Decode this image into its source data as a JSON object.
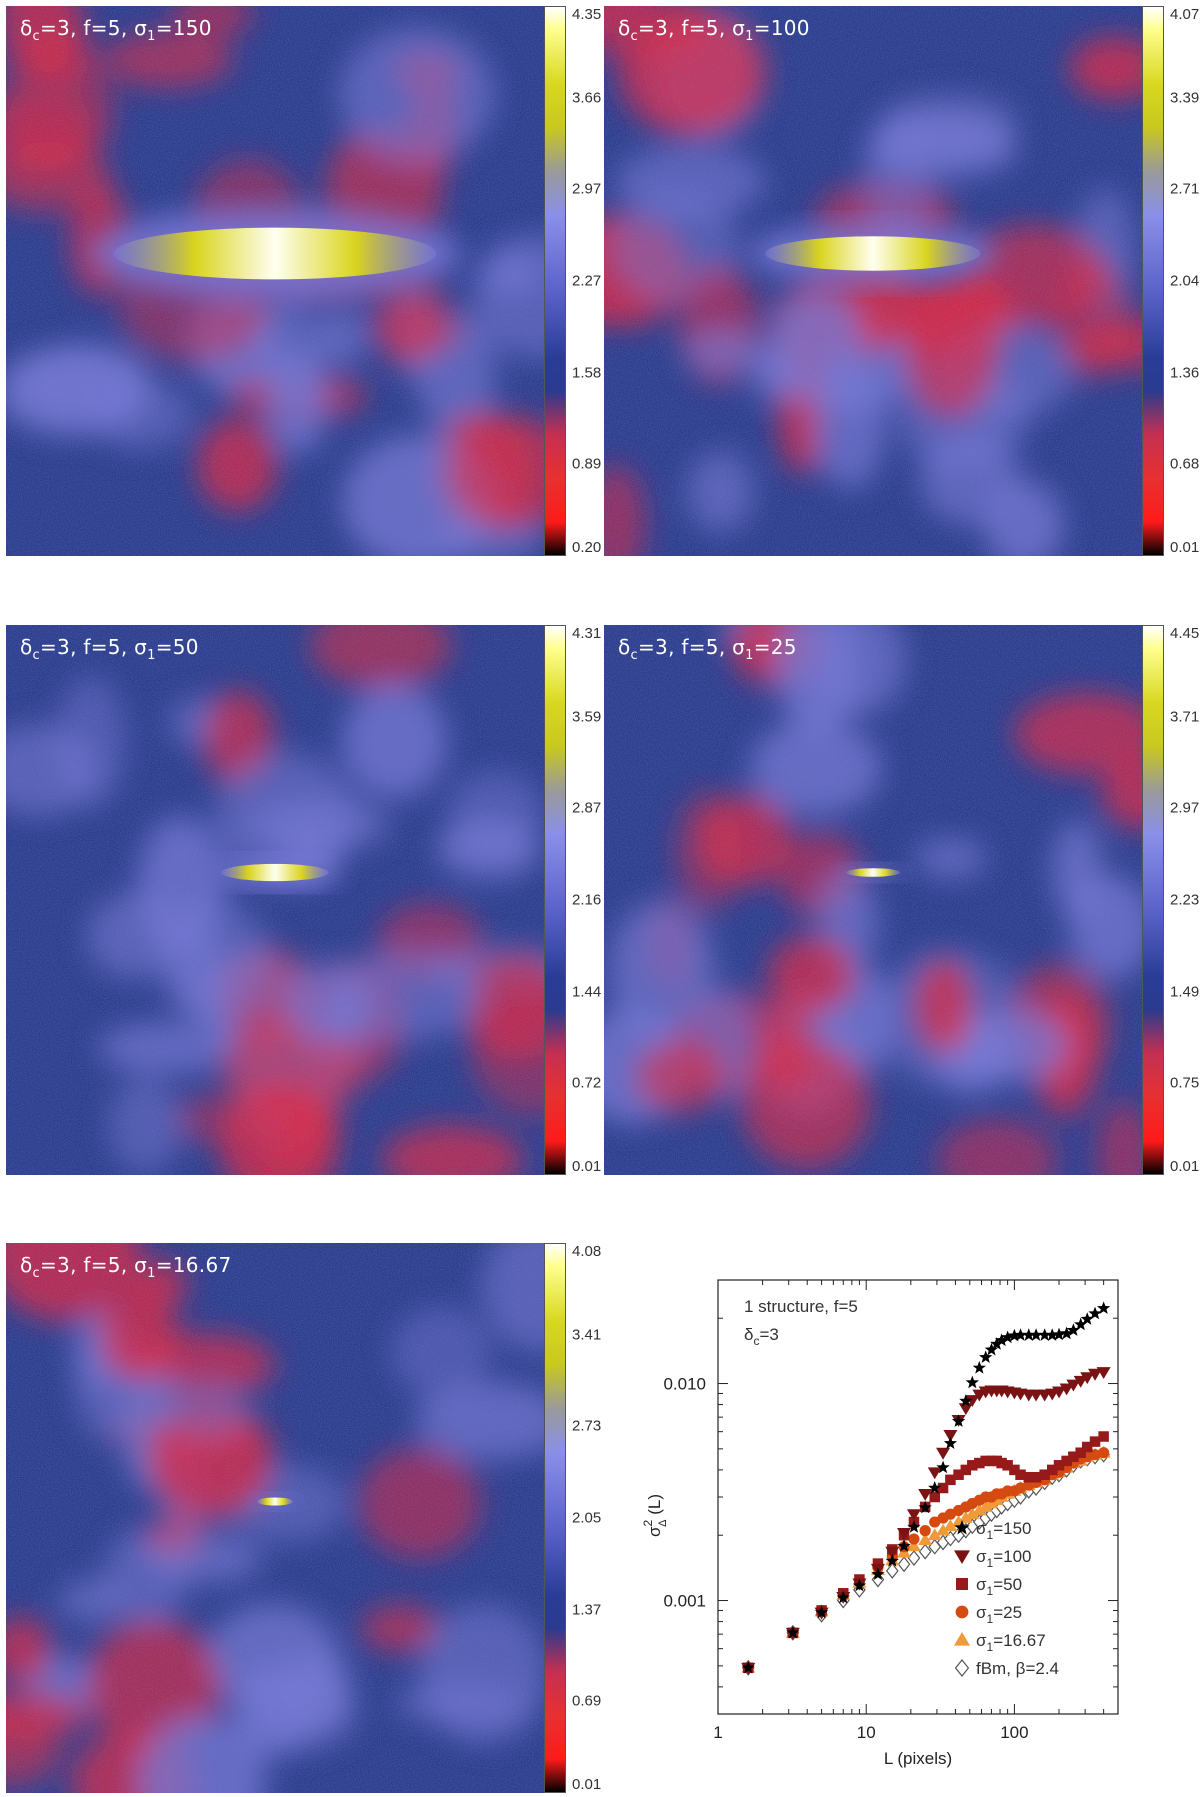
{
  "maps": [
    {
      "label_prefix": "δ",
      "label_sub": "c",
      "label_mid": "=3,  f=5,  σ",
      "label_sub2": "1",
      "label_val": "=150",
      "colorbar_ticks": [
        "4.35",
        "3.66",
        "2.97",
        "2.27",
        "1.58",
        "0.89",
        "0.20"
      ],
      "ellipse_width_fraction": 0.6
    },
    {
      "label_prefix": "δ",
      "label_sub": "c",
      "label_mid": "=3,  f=5,  σ",
      "label_sub2": "1",
      "label_val": "=100",
      "colorbar_ticks": [
        "4.07",
        "3.39",
        "2.71",
        "2.04",
        "1.36",
        "0.68",
        "0.01"
      ],
      "ellipse_width_fraction": 0.4
    },
    {
      "label_prefix": "δ",
      "label_sub": "c",
      "label_mid": "=3,  f=5,  σ",
      "label_sub2": "1",
      "label_val": "=50",
      "colorbar_ticks": [
        "4.31",
        "3.59",
        "2.87",
        "2.16",
        "1.44",
        "0.72",
        "0.01"
      ],
      "ellipse_width_fraction": 0.2
    },
    {
      "label_prefix": "δ",
      "label_sub": "c",
      "label_mid": "=3,  f=5,  σ",
      "label_sub2": "1",
      "label_val": "=25",
      "colorbar_ticks": [
        "4.45",
        "3.71",
        "2.97",
        "2.23",
        "1.49",
        "0.75",
        "0.01"
      ],
      "ellipse_width_fraction": 0.1
    },
    {
      "label_prefix": "δ",
      "label_sub": "c",
      "label_mid": "=3,  f=5,  σ",
      "label_sub2": "1",
      "label_val": "=16.67",
      "colorbar_ticks": [
        "4.08",
        "3.41",
        "2.73",
        "2.05",
        "1.37",
        "0.69",
        "0.01"
      ],
      "ellipse_width_fraction": 0.067
    }
  ],
  "colors": {
    "map_bg": "#2b3c8c",
    "map_light": "#7878d6",
    "map_red": "#e8233a",
    "core_yellow": "#d9d41e",
    "core_white": "#fffff0"
  },
  "chart_data": {
    "type": "scatter",
    "xscale": "log",
    "yscale": "log",
    "xlim": [
      1,
      500
    ],
    "ylim": [
      0.0003,
      0.03
    ],
    "xlabel": "L (pixels)",
    "ylabel_main": "σ",
    "ylabel_sup": "2",
    "ylabel_sub": "Δ",
    "ylabel_tail": " (L)",
    "xticks": [
      {
        "v": 1,
        "label": "1"
      },
      {
        "v": 10,
        "label": "10"
      },
      {
        "v": 100,
        "label": "100"
      }
    ],
    "yticks": [
      {
        "v": 0.001,
        "label": "0.001"
      },
      {
        "v": 0.01,
        "label": "0.010"
      }
    ],
    "annotation_line1": "1 structure, f=5",
    "annotation_line2_main": "δ",
    "annotation_line2_sub": "c",
    "annotation_line2_tail": "=3",
    "legend_position": "bottom-right",
    "series": [
      {
        "name_main": "σ",
        "name_sub": "1",
        "name_tail": "=150",
        "marker": "star",
        "color": "#000000",
        "x": [
          1.6,
          3.2,
          5,
          7,
          9,
          12,
          15,
          18,
          21,
          25,
          29,
          33,
          37,
          42,
          47,
          52,
          58,
          64,
          70,
          76,
          82,
          90,
          100,
          110,
          125,
          140,
          160,
          180,
          200,
          225,
          250,
          280,
          310,
          350,
          400
        ],
        "y": [
          0.00049,
          0.00071,
          0.00088,
          0.00103,
          0.00117,
          0.00132,
          0.00152,
          0.00178,
          0.00218,
          0.00268,
          0.0033,
          0.0041,
          0.0053,
          0.0067,
          0.0083,
          0.0101,
          0.0118,
          0.0132,
          0.0143,
          0.0152,
          0.0158,
          0.0163,
          0.0166,
          0.0167,
          0.0167,
          0.0167,
          0.0167,
          0.0167,
          0.0168,
          0.017,
          0.0176,
          0.0187,
          0.0198,
          0.021,
          0.0222
        ]
      },
      {
        "name_main": "σ",
        "name_sub": "1",
        "name_tail": "=100",
        "marker": "triangle-down",
        "color": "#7a1414",
        "x": [
          1.6,
          3.2,
          5,
          7,
          9,
          12,
          15,
          18,
          21,
          25,
          29,
          33,
          37,
          42,
          47,
          52,
          58,
          64,
          70,
          76,
          82,
          90,
          100,
          110,
          125,
          140,
          160,
          180,
          200,
          225,
          250,
          280,
          310,
          350,
          400
        ],
        "y": [
          0.00049,
          0.00071,
          0.00088,
          0.00104,
          0.0012,
          0.0014,
          0.00168,
          0.00205,
          0.0025,
          0.0031,
          0.0039,
          0.0048,
          0.0058,
          0.0068,
          0.0077,
          0.0084,
          0.0089,
          0.0092,
          0.0093,
          0.0093,
          0.0093,
          0.0092,
          0.0091,
          0.009,
          0.0089,
          0.0089,
          0.0089,
          0.009,
          0.0092,
          0.0095,
          0.0099,
          0.0103,
          0.0107,
          0.0111,
          0.0113
        ]
      },
      {
        "name_main": "σ",
        "name_sub": "1",
        "name_tail": "=50",
        "marker": "square",
        "color": "#961a1a",
        "x": [
          1.6,
          3.2,
          5,
          7,
          9,
          12,
          15,
          18,
          21,
          25,
          29,
          33,
          37,
          42,
          47,
          52,
          58,
          64,
          70,
          76,
          82,
          90,
          100,
          110,
          125,
          140,
          160,
          180,
          200,
          225,
          250,
          280,
          310,
          350,
          400
        ],
        "y": [
          0.00049,
          0.00071,
          0.0009,
          0.00108,
          0.00125,
          0.00148,
          0.00172,
          0.002,
          0.0023,
          0.0027,
          0.003,
          0.0033,
          0.0036,
          0.0038,
          0.004,
          0.0042,
          0.0043,
          0.0044,
          0.0044,
          0.0044,
          0.0043,
          0.0042,
          0.004,
          0.0038,
          0.0037,
          0.0037,
          0.0038,
          0.004,
          0.0042,
          0.0044,
          0.0046,
          0.0048,
          0.0051,
          0.0054,
          0.0057
        ]
      },
      {
        "name_main": "σ",
        "name_sub": "1",
        "name_tail": "=25",
        "marker": "circle",
        "color": "#d44a10",
        "x": [
          1.6,
          3.2,
          5,
          7,
          9,
          12,
          15,
          18,
          21,
          25,
          29,
          33,
          37,
          42,
          47,
          52,
          58,
          64,
          70,
          76,
          82,
          90,
          100,
          110,
          125,
          140,
          160,
          180,
          200,
          225,
          250,
          280,
          310,
          350,
          400
        ],
        "y": [
          0.00049,
          0.00071,
          0.0009,
          0.00107,
          0.00123,
          0.00142,
          0.0016,
          0.00177,
          0.00192,
          0.0021,
          0.0023,
          0.0024,
          0.0025,
          0.0026,
          0.0027,
          0.0028,
          0.0029,
          0.003,
          0.003,
          0.0031,
          0.0031,
          0.0032,
          0.0032,
          0.0033,
          0.0034,
          0.0035,
          0.0036,
          0.0038,
          0.0039,
          0.0041,
          0.0043,
          0.0045,
          0.0046,
          0.0047,
          0.0048
        ]
      },
      {
        "name_main": "σ",
        "name_sub": "1",
        "name_tail": "=16.67",
        "marker": "triangle-up",
        "color": "#f29a3a",
        "x": [
          1.6,
          3.2,
          5,
          7,
          9,
          12,
          15,
          18,
          21,
          25,
          29,
          33,
          37,
          42,
          47,
          52,
          58,
          64,
          70,
          76,
          82,
          90,
          100,
          110,
          125,
          140,
          160,
          180,
          200,
          225,
          250,
          280,
          310,
          350,
          400
        ],
        "y": [
          0.00049,
          0.00071,
          0.00089,
          0.00106,
          0.00121,
          0.00138,
          0.00153,
          0.00166,
          0.00178,
          0.0019,
          0.002,
          0.0021,
          0.0022,
          0.0023,
          0.0024,
          0.0025,
          0.0026,
          0.0027,
          0.0028,
          0.0029,
          0.003,
          0.0031,
          0.0032,
          0.0033,
          0.0034,
          0.0035,
          0.0036,
          0.0038,
          0.0039,
          0.0041,
          0.0043,
          0.0044,
          0.0046,
          0.0047,
          0.0048
        ]
      },
      {
        "name_main": "fBm, ",
        "name_sub": "",
        "name_tail": "β=2.4",
        "marker": "diamond-open",
        "color": "#555555",
        "x": [
          1.6,
          3.2,
          5,
          7,
          9,
          12,
          15,
          18,
          21,
          25,
          29,
          33,
          37,
          42,
          47,
          52,
          58,
          64,
          70,
          76,
          82,
          90,
          100,
          110,
          125,
          140,
          160,
          180,
          200,
          225,
          250,
          280,
          310,
          350,
          400
        ],
        "y": [
          0.00049,
          0.00071,
          0.00086,
          0.001,
          0.00112,
          0.00125,
          0.00137,
          0.00147,
          0.00157,
          0.00168,
          0.00177,
          0.00185,
          0.00193,
          0.002,
          0.0021,
          0.0022,
          0.0023,
          0.0024,
          0.0025,
          0.0026,
          0.0027,
          0.0028,
          0.0029,
          0.003,
          0.0032,
          0.0033,
          0.0035,
          0.0037,
          0.0038,
          0.004,
          0.0042,
          0.0044,
          0.0045,
          0.0046,
          0.0047
        ]
      }
    ]
  }
}
